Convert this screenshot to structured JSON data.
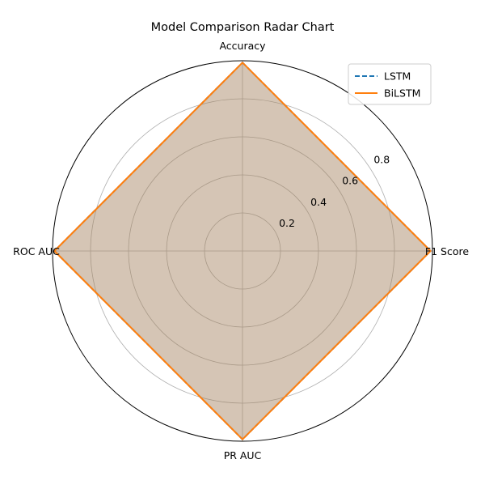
{
  "chart_data": {
    "type": "radar",
    "title": "Model Comparison Radar Chart",
    "categories": [
      "Accuracy",
      "F1 Score",
      "PR AUC",
      "ROC AUC"
    ],
    "radial_ticks": [
      "0.2",
      "0.4",
      "0.6",
      "0.8"
    ],
    "radial_tick_values": [
      0.2,
      0.4,
      0.6,
      0.8
    ],
    "rlim": [
      0,
      1.0
    ],
    "grid": true,
    "legend_position": "top-right",
    "series": [
      {
        "name": "LSTM",
        "values": [
          0.99,
          0.99,
          0.99,
          0.99
        ],
        "color": "#1f77b4",
        "line_style": "dashed"
      },
      {
        "name": "BiLSTM",
        "values": [
          0.99,
          0.99,
          0.99,
          0.99
        ],
        "color": "#ff7f0e",
        "line_style": "solid"
      }
    ],
    "fill_alpha": 0.25
  }
}
